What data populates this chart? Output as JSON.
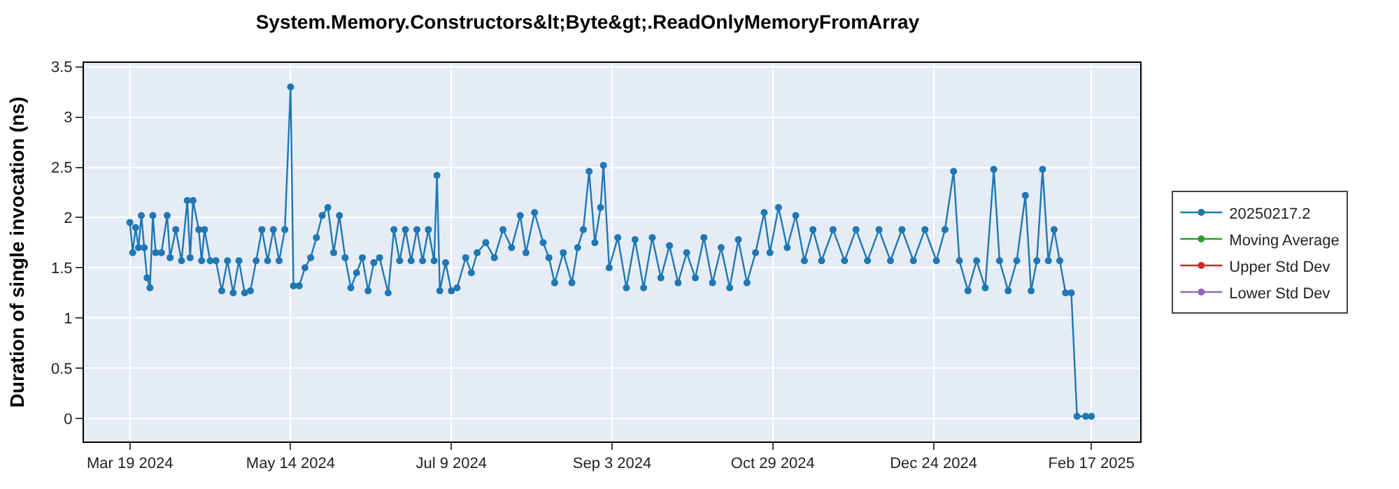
{
  "chart_data": {
    "type": "line",
    "title": "System.Memory.Constructors&lt;Byte&gt;.ReadOnlyMemoryFromArray",
    "ylabel": "Duration of single invocation (ns)",
    "x": [
      "2024-03-19",
      "2024-03-20",
      "2024-03-21",
      "2024-03-22",
      "2024-03-23",
      "2024-03-24",
      "2024-03-25",
      "2024-03-26",
      "2024-03-27",
      "2024-03-28",
      "2024-03-30",
      "2024-04-01",
      "2024-04-02",
      "2024-04-04",
      "2024-04-06",
      "2024-04-08",
      "2024-04-09",
      "2024-04-10",
      "2024-04-12",
      "2024-04-13",
      "2024-04-14",
      "2024-04-16",
      "2024-04-18",
      "2024-04-20",
      "2024-04-22",
      "2024-04-24",
      "2024-04-26",
      "2024-04-28",
      "2024-04-30",
      "2024-05-02",
      "2024-05-04",
      "2024-05-06",
      "2024-05-08",
      "2024-05-10",
      "2024-05-12",
      "2024-05-14",
      "2024-05-15",
      "2024-05-17",
      "2024-05-19",
      "2024-05-21",
      "2024-05-23",
      "2024-05-25",
      "2024-05-27",
      "2024-05-29",
      "2024-05-31",
      "2024-06-02",
      "2024-06-04",
      "2024-06-06",
      "2024-06-08",
      "2024-06-10",
      "2024-06-12",
      "2024-06-14",
      "2024-06-17",
      "2024-06-19",
      "2024-06-21",
      "2024-06-23",
      "2024-06-25",
      "2024-06-27",
      "2024-06-29",
      "2024-07-01",
      "2024-07-03",
      "2024-07-04",
      "2024-07-05",
      "2024-07-07",
      "2024-07-09",
      "2024-07-11",
      "2024-07-14",
      "2024-07-16",
      "2024-07-18",
      "2024-07-21",
      "2024-07-24",
      "2024-07-27",
      "2024-07-30",
      "2024-08-02",
      "2024-08-04",
      "2024-08-07",
      "2024-08-10",
      "2024-08-12",
      "2024-08-14",
      "2024-08-17",
      "2024-08-20",
      "2024-08-22",
      "2024-08-24",
      "2024-08-26",
      "2024-08-28",
      "2024-08-30",
      "2024-08-31",
      "2024-09-02",
      "2024-09-05",
      "2024-09-08",
      "2024-09-11",
      "2024-09-14",
      "2024-09-17",
      "2024-09-20",
      "2024-09-23",
      "2024-09-26",
      "2024-09-29",
      "2024-10-02",
      "2024-10-05",
      "2024-10-08",
      "2024-10-11",
      "2024-10-14",
      "2024-10-17",
      "2024-10-20",
      "2024-10-23",
      "2024-10-26",
      "2024-10-28",
      "2024-10-31",
      "2024-11-03",
      "2024-11-06",
      "2024-11-09",
      "2024-11-12",
      "2024-11-15",
      "2024-11-19",
      "2024-11-23",
      "2024-11-27",
      "2024-12-01",
      "2024-12-05",
      "2024-12-09",
      "2024-12-13",
      "2024-12-17",
      "2024-12-21",
      "2024-12-25",
      "2024-12-28",
      "2024-12-31",
      "2025-01-02",
      "2025-01-05",
      "2025-01-08",
      "2025-01-11",
      "2025-01-14",
      "2025-01-16",
      "2025-01-19",
      "2025-01-22",
      "2025-01-25",
      "2025-01-27",
      "2025-01-29",
      "2025-01-31",
      "2025-02-02",
      "2025-02-04",
      "2025-02-06",
      "2025-02-08",
      "2025-02-10",
      "2025-02-12",
      "2025-02-15",
      "2025-02-17"
    ],
    "series": [
      {
        "name": "20250217.2",
        "color": "#1f77b4",
        "values": [
          1.95,
          1.65,
          1.9,
          1.7,
          2.02,
          1.7,
          1.4,
          1.3,
          2.02,
          1.65,
          1.65,
          2.02,
          1.6,
          1.88,
          1.57,
          2.17,
          1.6,
          2.17,
          1.88,
          1.57,
          1.88,
          1.57,
          1.57,
          1.27,
          1.57,
          1.25,
          1.57,
          1.25,
          1.27,
          1.57,
          1.88,
          1.57,
          1.88,
          1.57,
          1.88,
          3.3,
          1.32,
          1.32,
          1.5,
          1.6,
          1.8,
          2.02,
          2.1,
          1.65,
          2.02,
          1.6,
          1.3,
          1.45,
          1.6,
          1.27,
          1.55,
          1.6,
          1.25,
          1.88,
          1.57,
          1.88,
          1.57,
          1.88,
          1.57,
          1.88,
          1.57,
          2.42,
          1.27,
          1.55,
          1.27,
          1.3,
          1.6,
          1.45,
          1.65,
          1.75,
          1.6,
          1.88,
          1.7,
          2.02,
          1.65,
          2.05,
          1.75,
          1.6,
          1.35,
          1.65,
          1.35,
          1.7,
          1.88,
          2.46,
          1.75,
          2.1,
          2.52,
          1.5,
          1.8,
          1.3,
          1.78,
          1.3,
          1.8,
          1.4,
          1.72,
          1.35,
          1.65,
          1.4,
          1.8,
          1.35,
          1.7,
          1.3,
          1.78,
          1.35,
          1.65,
          2.05,
          1.65,
          2.1,
          1.7,
          2.02,
          1.57,
          1.88,
          1.57,
          1.88,
          1.57,
          1.88,
          1.57,
          1.88,
          1.57,
          1.88,
          1.57,
          1.88,
          1.57,
          1.88,
          2.46,
          1.57,
          1.27,
          1.57,
          1.3,
          2.48,
          1.57,
          1.27,
          1.57,
          2.22,
          1.27,
          1.57,
          2.48,
          1.57,
          1.88,
          1.57,
          1.25,
          1.25,
          0.02,
          0.02,
          0.02
        ]
      },
      {
        "name": "Moving Average",
        "color": "#2ca02c",
        "values": [
          null,
          null,
          null,
          null,
          null,
          null,
          null,
          null,
          null,
          null,
          null,
          null,
          null,
          null,
          null,
          null,
          null,
          null,
          null,
          null,
          null,
          null,
          null,
          null,
          null,
          null,
          null,
          null,
          null,
          null,
          null,
          null,
          null,
          null,
          null,
          null,
          null,
          null,
          null,
          null,
          null,
          null,
          null,
          null,
          null,
          null,
          null,
          null,
          null,
          null,
          null,
          null,
          null,
          null,
          null,
          null,
          null,
          null,
          null,
          null,
          null,
          null,
          null,
          null,
          null,
          null,
          null,
          null,
          null,
          null,
          null,
          null,
          null,
          null,
          null,
          null,
          null,
          null,
          null,
          null,
          null,
          null,
          null,
          null,
          null,
          null,
          null,
          null,
          null,
          null,
          null,
          null,
          null,
          null,
          null,
          null,
          null,
          null,
          null,
          null,
          null,
          null,
          null,
          null,
          null,
          null,
          null,
          null,
          null,
          null,
          null,
          null,
          null,
          null,
          null,
          null,
          null,
          null,
          null,
          null,
          null,
          null,
          null,
          null,
          null,
          null,
          null,
          null,
          null,
          null,
          null,
          null,
          null,
          null,
          null,
          null,
          null,
          null,
          null,
          null,
          null,
          null,
          null,
          null,
          null
        ]
      },
      {
        "name": "Upper Std Dev",
        "color": "#d62728",
        "values": [
          null,
          null,
          null,
          null,
          null,
          null,
          null,
          null,
          null,
          null,
          null,
          null,
          null,
          null,
          null,
          null,
          null,
          null,
          null,
          null,
          null,
          null,
          null,
          null,
          null,
          null,
          null,
          null,
          null,
          null,
          null,
          null,
          null,
          null,
          null,
          null,
          null,
          null,
          null,
          null,
          null,
          null,
          null,
          null,
          null,
          null,
          null,
          null,
          null,
          null,
          null,
          null,
          null,
          null,
          null,
          null,
          null,
          null,
          null,
          null,
          null,
          null,
          null,
          null,
          null,
          null,
          null,
          null,
          null,
          null,
          null,
          null,
          null,
          null,
          null,
          null,
          null,
          null,
          null,
          null,
          null,
          null,
          null,
          null,
          null,
          null,
          null,
          null,
          null,
          null,
          null,
          null,
          null,
          null,
          null,
          null,
          null,
          null,
          null,
          null,
          null,
          null,
          null,
          null,
          null,
          null,
          null,
          null,
          null,
          null,
          null,
          null,
          null,
          null,
          null,
          null,
          null,
          null,
          null,
          null,
          null,
          null,
          null,
          null,
          null,
          null,
          null,
          null,
          null,
          null,
          null,
          null,
          null,
          null,
          null,
          null,
          null,
          null,
          null,
          null,
          null,
          null,
          null,
          null,
          null
        ]
      },
      {
        "name": "Lower Std Dev",
        "color": "#9467bd",
        "values": [
          null,
          null,
          null,
          null,
          null,
          null,
          null,
          null,
          null,
          null,
          null,
          null,
          null,
          null,
          null,
          null,
          null,
          null,
          null,
          null,
          null,
          null,
          null,
          null,
          null,
          null,
          null,
          null,
          null,
          null,
          null,
          null,
          null,
          null,
          null,
          null,
          null,
          null,
          null,
          null,
          null,
          null,
          null,
          null,
          null,
          null,
          null,
          null,
          null,
          null,
          null,
          null,
          null,
          null,
          null,
          null,
          null,
          null,
          null,
          null,
          null,
          null,
          null,
          null,
          null,
          null,
          null,
          null,
          null,
          null,
          null,
          null,
          null,
          null,
          null,
          null,
          null,
          null,
          null,
          null,
          null,
          null,
          null,
          null,
          null,
          null,
          null,
          null,
          null,
          null,
          null,
          null,
          null,
          null,
          null,
          null,
          null,
          null,
          null,
          null,
          null,
          null,
          null,
          null,
          null,
          null,
          null,
          null,
          null,
          null,
          null,
          null,
          null,
          null,
          null,
          null,
          null,
          null,
          null,
          null,
          null,
          null,
          null,
          null,
          null,
          null,
          null,
          null,
          null,
          null,
          null,
          null,
          null,
          null,
          null,
          null,
          null,
          null,
          null,
          null,
          null,
          null,
          null,
          null,
          null
        ]
      }
    ],
    "xlim": [
      "2024-03-03",
      "2025-03-06"
    ],
    "xticks": [
      {
        "value": "2024-03-19",
        "label": "Mar 19 2024"
      },
      {
        "value": "2024-05-14",
        "label": "May 14 2024"
      },
      {
        "value": "2024-07-09",
        "label": "Jul 9 2024"
      },
      {
        "value": "2024-09-03",
        "label": "Sep 3 2024"
      },
      {
        "value": "2024-10-29",
        "label": "Oct 29 2024"
      },
      {
        "value": "2024-12-24",
        "label": "Dec 24 2024"
      },
      {
        "value": "2025-02-17",
        "label": "Feb 17 2025"
      }
    ],
    "ylim": [
      -0.23,
      3.54
    ],
    "yticks": [
      0,
      0.5,
      1,
      1.5,
      2,
      2.5,
      3,
      3.5
    ],
    "grid": true,
    "legend": "right",
    "marker": "circle",
    "line_style": "solid"
  }
}
